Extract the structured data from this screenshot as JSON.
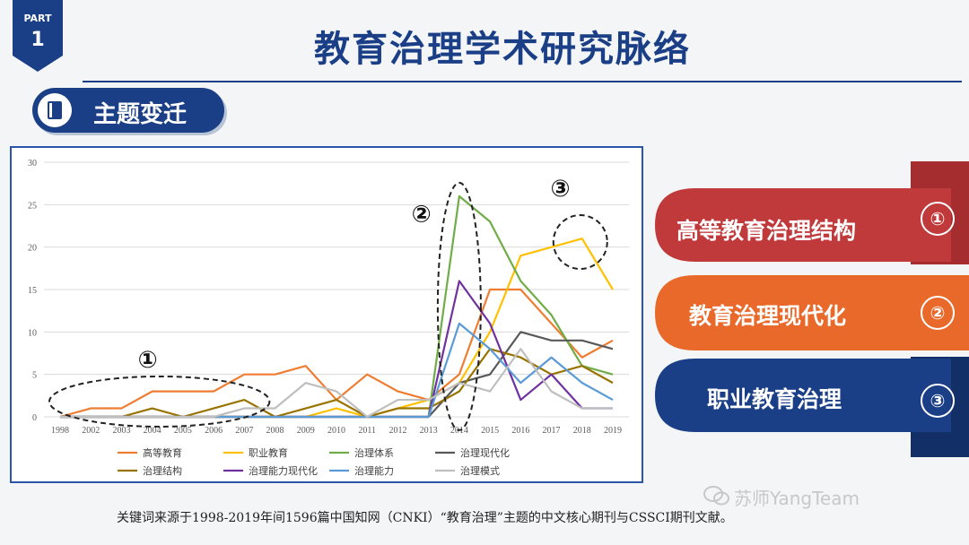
{
  "header": {
    "part_label": "PART",
    "part_number": "1",
    "title": "教育治理学术研究脉络"
  },
  "section": {
    "title": "主题变迁",
    "icon": "book-icon"
  },
  "chart_data": {
    "type": "line",
    "x": [
      "1998",
      "2002",
      "2003",
      "2004",
      "2005",
      "2006",
      "2007",
      "2008",
      "2009",
      "2010",
      "2011",
      "2012",
      "2013",
      "2014",
      "2015",
      "2016",
      "2017",
      "2018",
      "2019"
    ],
    "ylim": [
      0,
      30
    ],
    "yticks": [
      "0",
      "5",
      "10",
      "15",
      "20",
      "25",
      "30"
    ],
    "grid": true,
    "legend_position": "bottom",
    "series": [
      {
        "name": "高等教育",
        "color": "#ee7d31",
        "values": [
          0,
          1,
          1,
          3,
          3,
          3,
          5,
          5,
          6,
          2,
          5,
          3,
          2,
          5,
          15,
          15,
          11,
          7,
          9
        ]
      },
      {
        "name": "职业教育",
        "color": "#ffc000",
        "values": [
          0,
          0,
          0,
          0,
          0,
          0,
          0,
          0,
          0,
          1,
          0,
          1,
          2,
          4,
          10,
          19,
          20,
          21,
          15
        ]
      },
      {
        "name": "治理体系",
        "color": "#70ad47",
        "values": [
          0,
          0,
          0,
          0,
          0,
          0,
          0,
          0,
          0,
          0,
          0,
          0,
          0,
          26,
          23,
          16,
          12,
          6,
          5
        ]
      },
      {
        "name": "治理现代化",
        "color": "#595959",
        "values": [
          0,
          0,
          0,
          0,
          0,
          0,
          0,
          0,
          0,
          0,
          0,
          0,
          0,
          4,
          5,
          10,
          9,
          9,
          8
        ]
      },
      {
        "name": "治理结构",
        "color": "#997300",
        "values": [
          0,
          0,
          0,
          1,
          0,
          1,
          2,
          0,
          1,
          2,
          0,
          1,
          1,
          3,
          8,
          7,
          5,
          6,
          4
        ]
      },
      {
        "name": "治理能力现代化",
        "color": "#7030a0",
        "values": [
          0,
          0,
          0,
          0,
          0,
          0,
          0,
          0,
          0,
          0,
          0,
          0,
          0,
          16,
          11,
          2,
          5,
          1,
          1
        ]
      },
      {
        "name": "治理能力",
        "color": "#5b9bd5",
        "values": [
          0,
          0,
          0,
          0,
          0,
          0,
          0,
          0,
          0,
          0,
          0,
          0,
          0,
          11,
          8,
          4,
          7,
          4,
          2
        ]
      },
      {
        "name": "治理模式",
        "color": "#bfbfbf",
        "values": [
          0,
          0,
          0,
          0,
          0,
          0,
          1,
          1,
          4,
          3,
          0,
          2,
          2,
          4,
          3,
          8,
          3,
          1,
          1
        ]
      }
    ],
    "annotations": [
      "①",
      "②",
      "③"
    ]
  },
  "banners": [
    {
      "label": "高等教育治理结构",
      "number": "①",
      "color": "#c0393b"
    },
    {
      "label": "教育治理现代化",
      "number": "②",
      "color": "#e8692a"
    },
    {
      "label": "职业教育治理",
      "number": "③",
      "color": "#1b3f86"
    }
  ],
  "footnote": "关键词来源于1998-2019年间1596篇中国知网（CNKI）“教育治理”主题的中文核心期刊与CSSCI期刊文献。",
  "watermark": "苏师YangTeam"
}
